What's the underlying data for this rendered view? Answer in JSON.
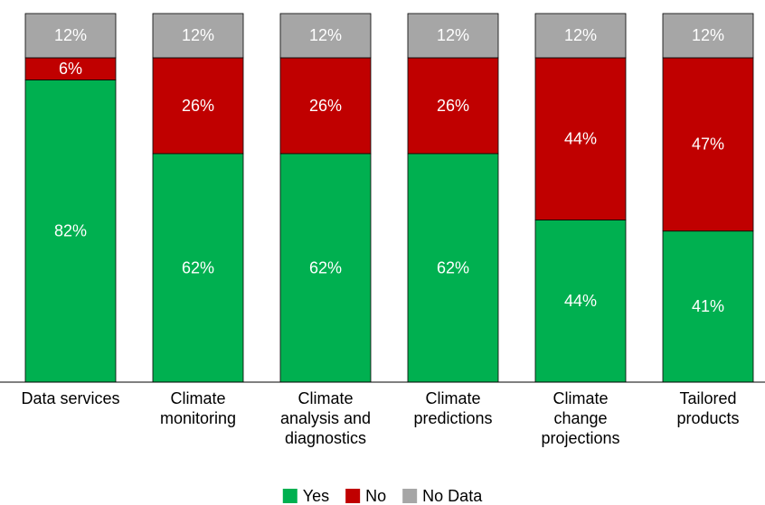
{
  "chart_data": {
    "type": "stacked_bar",
    "categories": [
      "Data services",
      "Climate monitoring",
      "Climate analysis and diagnostics",
      "Climate predictions",
      "Climate change projections",
      "Tailored products"
    ],
    "series": [
      {
        "name": "Yes",
        "color": "#00b050",
        "values": [
          82,
          62,
          62,
          62,
          44,
          41
        ],
        "value_labels": [
          "82%",
          "62%",
          "62%",
          "62%",
          "44%",
          "41%"
        ]
      },
      {
        "name": "No",
        "color": "#c00000",
        "values": [
          6,
          26,
          26,
          26,
          44,
          47
        ],
        "value_labels": [
          "6%",
          "26%",
          "26%",
          "26%",
          "44%",
          "47%"
        ]
      },
      {
        "name": "No Data",
        "color": "#a6a6a6",
        "values": [
          12,
          12,
          12,
          12,
          12,
          12
        ],
        "value_labels": [
          "12%",
          "12%",
          "12%",
          "12%",
          "12%",
          "12%"
        ]
      }
    ],
    "ylim": [
      0,
      100
    ],
    "legend": "bottom"
  }
}
